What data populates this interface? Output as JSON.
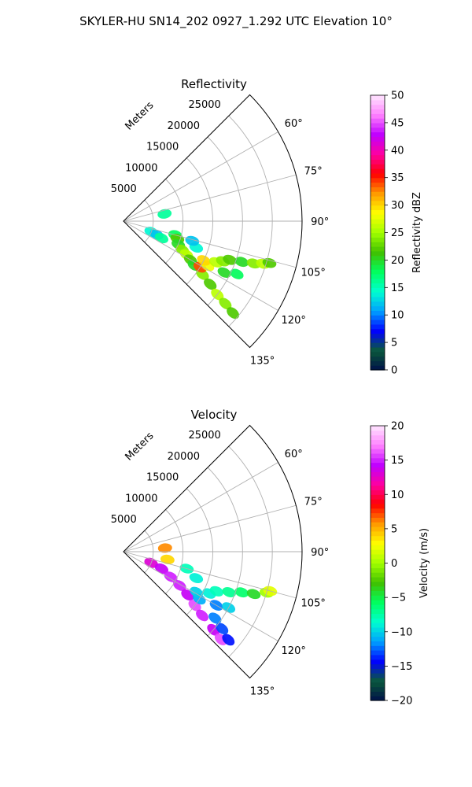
{
  "figure": {
    "suptitle": "SKYLER-HU  SN14_202  0927_1.292 UTC Elevation 10°"
  },
  "chart_data": [
    {
      "type": "polar-sector",
      "title": "Reflectivity",
      "radial_label": "Meters",
      "radial_ticks": [
        5000,
        10000,
        15000,
        20000,
        25000
      ],
      "radial_tick_labels": [
        "5000",
        "10000",
        "15000",
        "20000",
        "25000"
      ],
      "rlim": [
        0,
        30000
      ],
      "azimuth_range": [
        45,
        135
      ],
      "azimuth_ticks": [
        60,
        75,
        90,
        105,
        120,
        135
      ],
      "azimuth_tick_labels": [
        "60°",
        "75°",
        "90°",
        "105°",
        "120°",
        "135°"
      ],
      "grid": true,
      "colorbar": {
        "label": "Reflectivity dBZ",
        "vmin": 0,
        "vmax": 50,
        "ticks": [
          0,
          5,
          10,
          15,
          20,
          25,
          30,
          35,
          40,
          45,
          50
        ],
        "tick_labels": [
          "0",
          "5",
          "10",
          "15",
          "20",
          "25",
          "30",
          "35",
          "40",
          "45",
          "50"
        ],
        "stops": [
          "#00104a",
          "#0a5a3a",
          "#0000ff",
          "#00a0ff",
          "#00ffd0",
          "#00ff60",
          "#40c000",
          "#a0ff00",
          "#ffff00",
          "#ff9a00",
          "#ff0000",
          "#ff00a0",
          "#c000ff",
          "#ff80ff",
          "#ffe6ff"
        ]
      },
      "cells": [
        {
          "az": 111,
          "r": 5000,
          "v": 14
        },
        {
          "az": 112,
          "r": 6000,
          "v": 12
        },
        {
          "az": 114,
          "r": 7000,
          "v": 16
        },
        {
          "az": 105,
          "r": 9000,
          "v": 18
        },
        {
          "az": 108,
          "r": 9500,
          "v": 22
        },
        {
          "az": 113,
          "r": 10000,
          "v": 20
        },
        {
          "az": 116,
          "r": 11000,
          "v": 24
        },
        {
          "az": 118,
          "r": 12000,
          "v": 26
        },
        {
          "az": 120,
          "r": 13000,
          "v": 22
        },
        {
          "az": 122,
          "r": 14000,
          "v": 20
        },
        {
          "az": 124,
          "r": 16000,
          "v": 24
        },
        {
          "az": 126,
          "r": 18000,
          "v": 22
        },
        {
          "az": 128,
          "r": 20000,
          "v": 26
        },
        {
          "az": 129,
          "r": 22000,
          "v": 24
        },
        {
          "az": 130,
          "r": 24000,
          "v": 22
        },
        {
          "az": 121,
          "r": 15000,
          "v": 34
        },
        {
          "az": 118,
          "r": 16000,
          "v": 28
        },
        {
          "az": 116,
          "r": 15000,
          "v": 30
        },
        {
          "az": 114,
          "r": 17000,
          "v": 26
        },
        {
          "az": 112,
          "r": 18000,
          "v": 24
        },
        {
          "az": 110,
          "r": 19000,
          "v": 22
        },
        {
          "az": 109,
          "r": 21000,
          "v": 20
        },
        {
          "az": 108,
          "r": 23000,
          "v": 24
        },
        {
          "az": 107,
          "r": 24500,
          "v": 26
        },
        {
          "az": 106,
          "r": 25500,
          "v": 22
        },
        {
          "az": 117,
          "r": 19000,
          "v": 20
        },
        {
          "az": 115,
          "r": 21000,
          "v": 18
        },
        {
          "az": 110,
          "r": 13000,
          "v": 14
        },
        {
          "az": 106,
          "r": 12000,
          "v": 12
        },
        {
          "az": 80,
          "r": 7000,
          "v": 16
        }
      ]
    },
    {
      "type": "polar-sector",
      "title": "Velocity",
      "radial_label": "Meters",
      "radial_ticks": [
        5000,
        10000,
        15000,
        20000,
        25000
      ],
      "radial_tick_labels": [
        "5000",
        "10000",
        "15000",
        "20000",
        "25000"
      ],
      "rlim": [
        0,
        30000
      ],
      "azimuth_range": [
        45,
        135
      ],
      "azimuth_ticks": [
        60,
        75,
        90,
        105,
        120,
        135
      ],
      "azimuth_tick_labels": [
        "60°",
        "75°",
        "90°",
        "105°",
        "120°",
        "135°"
      ],
      "grid": true,
      "colorbar": {
        "label": "Velocity (m/s)",
        "vmin": -20,
        "vmax": 20,
        "ticks": [
          -20,
          -15,
          -10,
          -5,
          0,
          5,
          10,
          15,
          20
        ],
        "tick_labels": [
          "−20",
          "−15",
          "−10",
          "−5",
          "0",
          "5",
          "10",
          "15",
          "20"
        ],
        "stops": [
          "#00104a",
          "#0a5a3a",
          "#0000ff",
          "#00a0ff",
          "#00ffd0",
          "#00ff60",
          "#40c000",
          "#a0ff00",
          "#ffff00",
          "#ff9a00",
          "#ff0000",
          "#ff00a0",
          "#c000ff",
          "#ff80ff",
          "#ffe6ff"
        ]
      },
      "cells": [
        {
          "az": 112,
          "r": 5000,
          "v": 13
        },
        {
          "az": 114,
          "r": 7000,
          "v": 14
        },
        {
          "az": 118,
          "r": 9000,
          "v": 15
        },
        {
          "az": 121,
          "r": 11000,
          "v": 15
        },
        {
          "az": 124,
          "r": 13000,
          "v": 14
        },
        {
          "az": 127,
          "r": 15000,
          "v": 16
        },
        {
          "az": 129,
          "r": 17000,
          "v": 15
        },
        {
          "az": 131,
          "r": 20000,
          "v": 14
        },
        {
          "az": 132,
          "r": 22000,
          "v": 16
        },
        {
          "az": 130,
          "r": 23000,
          "v": -14
        },
        {
          "az": 128,
          "r": 21000,
          "v": -13
        },
        {
          "az": 126,
          "r": 19000,
          "v": -12
        },
        {
          "az": 122,
          "r": 15000,
          "v": -11
        },
        {
          "az": 119,
          "r": 14000,
          "v": -10
        },
        {
          "az": 116,
          "r": 16000,
          "v": -9
        },
        {
          "az": 113,
          "r": 17000,
          "v": -8
        },
        {
          "az": 111,
          "r": 19000,
          "v": -7
        },
        {
          "az": 109,
          "r": 21000,
          "v": -6
        },
        {
          "az": 108,
          "r": 23000,
          "v": -4
        },
        {
          "az": 106,
          "r": 25000,
          "v": 0
        },
        {
          "az": 105,
          "r": 25500,
          "v": 2
        },
        {
          "az": 110,
          "r": 13000,
          "v": -9
        },
        {
          "az": 105,
          "r": 11000,
          "v": -8
        },
        {
          "az": 120,
          "r": 18000,
          "v": -12
        },
        {
          "az": 118,
          "r": 20000,
          "v": -10
        },
        {
          "az": 85,
          "r": 7000,
          "v": 6
        },
        {
          "az": 100,
          "r": 7500,
          "v": 4
        }
      ]
    }
  ]
}
